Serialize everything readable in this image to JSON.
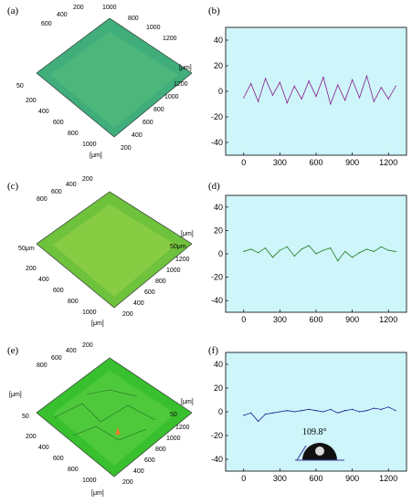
{
  "figure": {
    "rows": [
      {
        "surface": {
          "label": "(a)",
          "axis_unit_x": "[μm]",
          "axis_unit_y": "[μm]",
          "ticks_left": [
            "600",
            "400",
            "200"
          ],
          "ticks_right": [
            "800",
            "1000",
            "1200"
          ],
          "ticks_front_left": [
            "200",
            "400",
            "600",
            "800",
            "1000"
          ],
          "ticks_front_right": [
            "1200",
            "1000",
            "800",
            "600",
            "400",
            "200"
          ],
          "z_tick_top": "1000",
          "z_tick_low": "50",
          "color_base": "#3fae7a",
          "color_light": "#7fd36e",
          "color_dark": "#1f7a6a"
        },
        "profile_label": "(b)"
      },
      {
        "surface": {
          "label": "(c)",
          "axis_unit_x": "[μm]",
          "axis_unit_y": "[μm]",
          "ticks_left": [
            "800",
            "600",
            "400",
            "200"
          ],
          "ticks_front_left": [
            "200",
            "400",
            "600",
            "800",
            "1000"
          ],
          "ticks_front_right": [
            "1200",
            "1000",
            "800",
            "600",
            "400",
            "200"
          ],
          "z_tick_left": "50μm",
          "z_tick_right": "50μm",
          "color_base": "#6fc23c",
          "color_light": "#b9e25a",
          "color_dark": "#3d8a2c"
        },
        "profile_label": "(d)"
      },
      {
        "surface": {
          "label": "(e)",
          "axis_unit_x": "[μm]",
          "axis_unit_y": "[μm]",
          "ticks_left": [
            "800",
            "600",
            "400",
            "200"
          ],
          "ticks_front_left": [
            "200",
            "400",
            "600",
            "800",
            "1000"
          ],
          "ticks_front_right": [
            "1200",
            "1000",
            "800",
            "600",
            "400",
            "200"
          ],
          "z_tick_left": "50",
          "z_tick_right": "50",
          "color_base": "#39c02e",
          "color_light": "#7be05a",
          "color_dark": "#1f7d22"
        },
        "profile_label": "(f)",
        "inset_angle": "109.8°"
      }
    ],
    "colors": {
      "plot_background": "#cdf5fa",
      "profile_b": "#8a1a8a",
      "profile_d": "#1f7a1f",
      "profile_f": "#1a1a8a"
    }
  },
  "chart_data": [
    {
      "type": "line",
      "panel": "(b)",
      "xlim": [
        -150,
        1350
      ],
      "ylim": [
        -50,
        50
      ],
      "xticks": [
        "0",
        "300",
        "600",
        "900",
        "1200"
      ],
      "yticks": [
        "40",
        "20",
        "0",
        "-20",
        "-40"
      ],
      "x": [
        0,
        60,
        120,
        180,
        240,
        300,
        360,
        420,
        480,
        540,
        600,
        660,
        720,
        780,
        840,
        900,
        960,
        1020,
        1080,
        1140,
        1200,
        1260
      ],
      "series": [
        {
          "values": [
            -5,
            6,
            -8,
            10,
            -3,
            7,
            -9,
            4,
            -6,
            8,
            -4,
            11,
            -10,
            5,
            -7,
            9,
            -5,
            12,
            -8,
            3,
            -6,
            4
          ]
        }
      ]
    },
    {
      "type": "line",
      "panel": "(d)",
      "xlim": [
        -150,
        1350
      ],
      "ylim": [
        -50,
        50
      ],
      "xticks": [
        "0",
        "300",
        "600",
        "900",
        "1200"
      ],
      "yticks": [
        "40",
        "20",
        "0",
        "-20",
        "-40"
      ],
      "x": [
        0,
        60,
        120,
        180,
        240,
        300,
        360,
        420,
        480,
        540,
        600,
        660,
        720,
        780,
        840,
        900,
        960,
        1020,
        1080,
        1140,
        1200,
        1260
      ],
      "series": [
        {
          "values": [
            2,
            4,
            1,
            5,
            -3,
            3,
            6,
            -2,
            4,
            7,
            0,
            3,
            5,
            -6,
            2,
            -3,
            1,
            4,
            2,
            6,
            3,
            2
          ]
        }
      ]
    },
    {
      "type": "line",
      "panel": "(f)",
      "xlim": [
        -150,
        1350
      ],
      "ylim": [
        -50,
        50
      ],
      "xticks": [
        "0",
        "300",
        "600",
        "900",
        "1200"
      ],
      "yticks": [
        "40",
        "20",
        "0",
        "-20",
        "-40"
      ],
      "x": [
        0,
        60,
        120,
        180,
        240,
        300,
        360,
        420,
        480,
        540,
        600,
        660,
        720,
        780,
        840,
        900,
        960,
        1020,
        1080,
        1140,
        1200,
        1260
      ],
      "series": [
        {
          "values": [
            -3,
            -1,
            -8,
            -2,
            -1,
            0,
            1,
            0,
            1,
            2,
            1,
            0,
            2,
            -1,
            1,
            2,
            0,
            1,
            3,
            2,
            4,
            1
          ]
        }
      ]
    }
  ]
}
